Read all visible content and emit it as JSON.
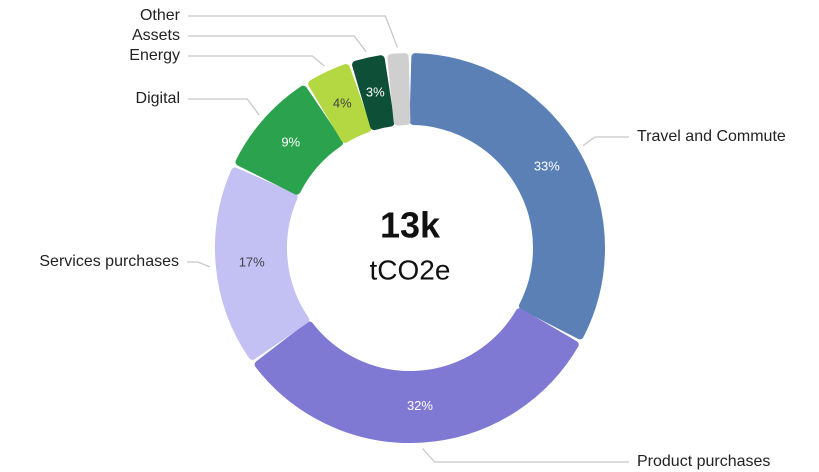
{
  "chart_data": {
    "type": "donut",
    "categories": [
      "Travel and Commute",
      "Product purchases",
      "Services purchases",
      "Digital",
      "Energy",
      "Assets",
      "Other"
    ],
    "values": [
      33,
      32,
      17,
      9,
      4,
      3,
      2
    ],
    "value_labels": [
      "33%",
      "32%",
      "17%",
      "9%",
      "4%",
      "3%",
      null
    ],
    "colors": [
      "#5a80b6",
      "#7f79d3",
      "#c3c0f4",
      "#2ba24e",
      "#b4d842",
      "#0e4f37",
      "#cfcfcf"
    ],
    "center_title": "13k",
    "center_subtitle": "tCO2e"
  }
}
